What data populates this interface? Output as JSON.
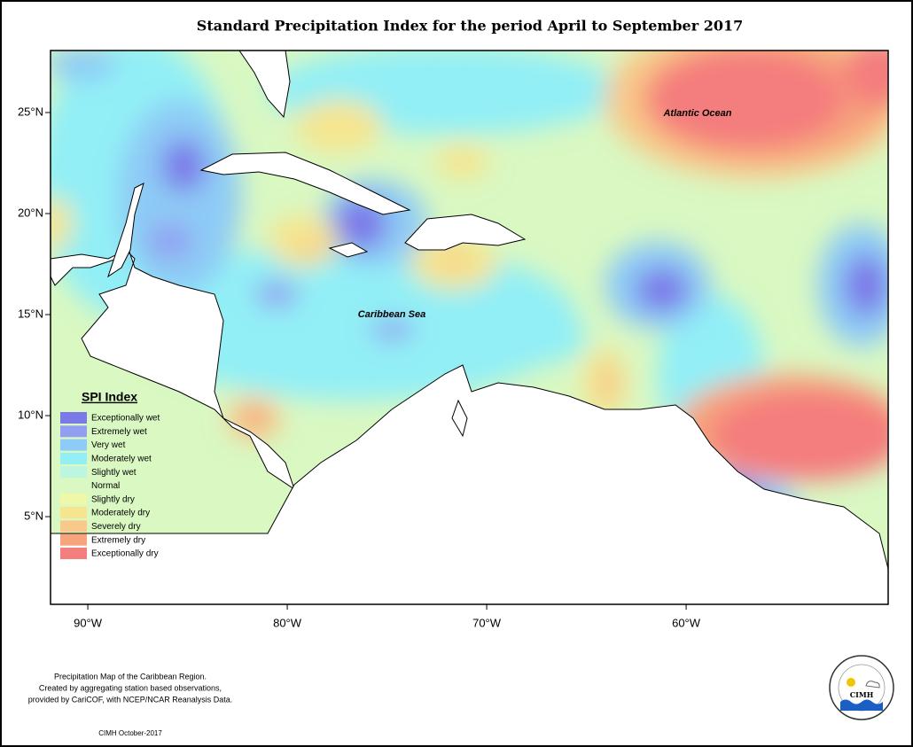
{
  "title": "Standard Precipitation Index for the period April to September 2017",
  "map": {
    "lonlim": [
      -91.87,
      -49.87
    ],
    "latlim": [
      0.66,
      28.07
    ],
    "lonticks": [
      {
        "value": -90,
        "label": "90°W"
      },
      {
        "value": -80,
        "label": "80°W"
      },
      {
        "value": -70,
        "label": "70°W"
      },
      {
        "value": -60,
        "label": "60°W"
      }
    ],
    "latticks": [
      {
        "value": 25,
        "label": "25°N"
      },
      {
        "value": 20,
        "label": "20°N"
      },
      {
        "value": 15,
        "label": "15°N"
      },
      {
        "value": 10,
        "label": "10°N"
      },
      {
        "value": 5,
        "label": "5°N"
      }
    ],
    "labels": [
      "Atlantic Ocean",
      "Caribbean Sea"
    ]
  },
  "legend": {
    "title": "SPI Index",
    "items": [
      {
        "name": "Exceptionally wet",
        "color": "#7b78e8"
      },
      {
        "name": "Extremely wet",
        "color": "#929ff0"
      },
      {
        "name": "Very wet",
        "color": "#8ecbf6"
      },
      {
        "name": "Moderately wet",
        "color": "#92eff6"
      },
      {
        "name": "Slightly wet",
        "color": "#bcf6e0"
      },
      {
        "name": "Normal",
        "color": "#d9f8c2"
      },
      {
        "name": "Slightly dry",
        "color": "#eff8a8"
      },
      {
        "name": "Moderately dry",
        "color": "#f6e58e"
      },
      {
        "name": "Severely dry",
        "color": "#f8c98a"
      },
      {
        "name": "Extremely dry",
        "color": "#f7a37c"
      },
      {
        "name": "Exceptionally dry",
        "color": "#f47d7d"
      }
    ]
  },
  "footer": {
    "notes": [
      "Precipitation Map of the Caribbean Region.",
      "Created by aggregating station based observations,",
      "provided by CariCOF, with NCEP/NCAR Reanalysis Data."
    ],
    "credit": "CIMH October-2017",
    "logo": "CIMH"
  }
}
